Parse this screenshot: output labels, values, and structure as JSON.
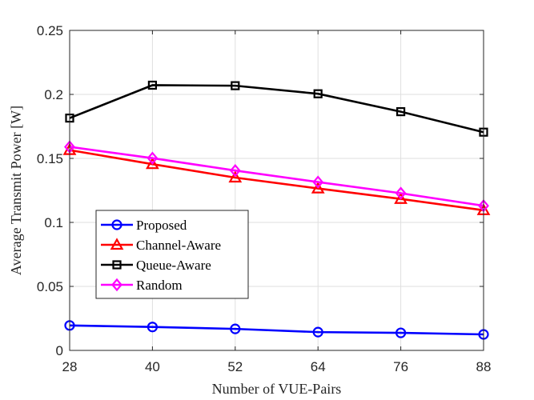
{
  "chart_data": {
    "type": "line",
    "title": "",
    "xlabel": "Number of VUE-Pairs",
    "ylabel": "Average Transmit Power [W]",
    "x": [
      28,
      40,
      52,
      64,
      76,
      88
    ],
    "xticks": [
      28,
      40,
      52,
      64,
      76,
      88
    ],
    "xtick_labels": [
      "28",
      "40",
      "52",
      "64",
      "76",
      "88"
    ],
    "xlim": [
      28,
      88
    ],
    "yticks": [
      0,
      0.05,
      0.1,
      0.15,
      0.2,
      0.25
    ],
    "ytick_labels": [
      "0",
      "0.05",
      "0.1",
      "0.15",
      "0.2",
      "0.25"
    ],
    "ylim": [
      0,
      0.25
    ],
    "grid": true,
    "legend_position": "lower-left",
    "series": [
      {
        "name": "Proposed",
        "color": "#0000ff",
        "marker": "circle",
        "values": [
          0.0195,
          0.0183,
          0.0168,
          0.0143,
          0.0137,
          0.0125
        ]
      },
      {
        "name": "Channel-Aware",
        "color": "#ff0000",
        "marker": "triangle",
        "values": [
          0.1565,
          0.1455,
          0.135,
          0.1265,
          0.1183,
          0.1095
        ]
      },
      {
        "name": "Queue-Aware",
        "color": "#000000",
        "marker": "square",
        "values": [
          0.1815,
          0.2072,
          0.2068,
          0.2005,
          0.1865,
          0.1705
        ]
      },
      {
        "name": "Random",
        "color": "#ff00ff",
        "marker": "diamond",
        "values": [
          0.159,
          0.1502,
          0.1405,
          0.1315,
          0.1228,
          0.113
        ]
      }
    ]
  }
}
